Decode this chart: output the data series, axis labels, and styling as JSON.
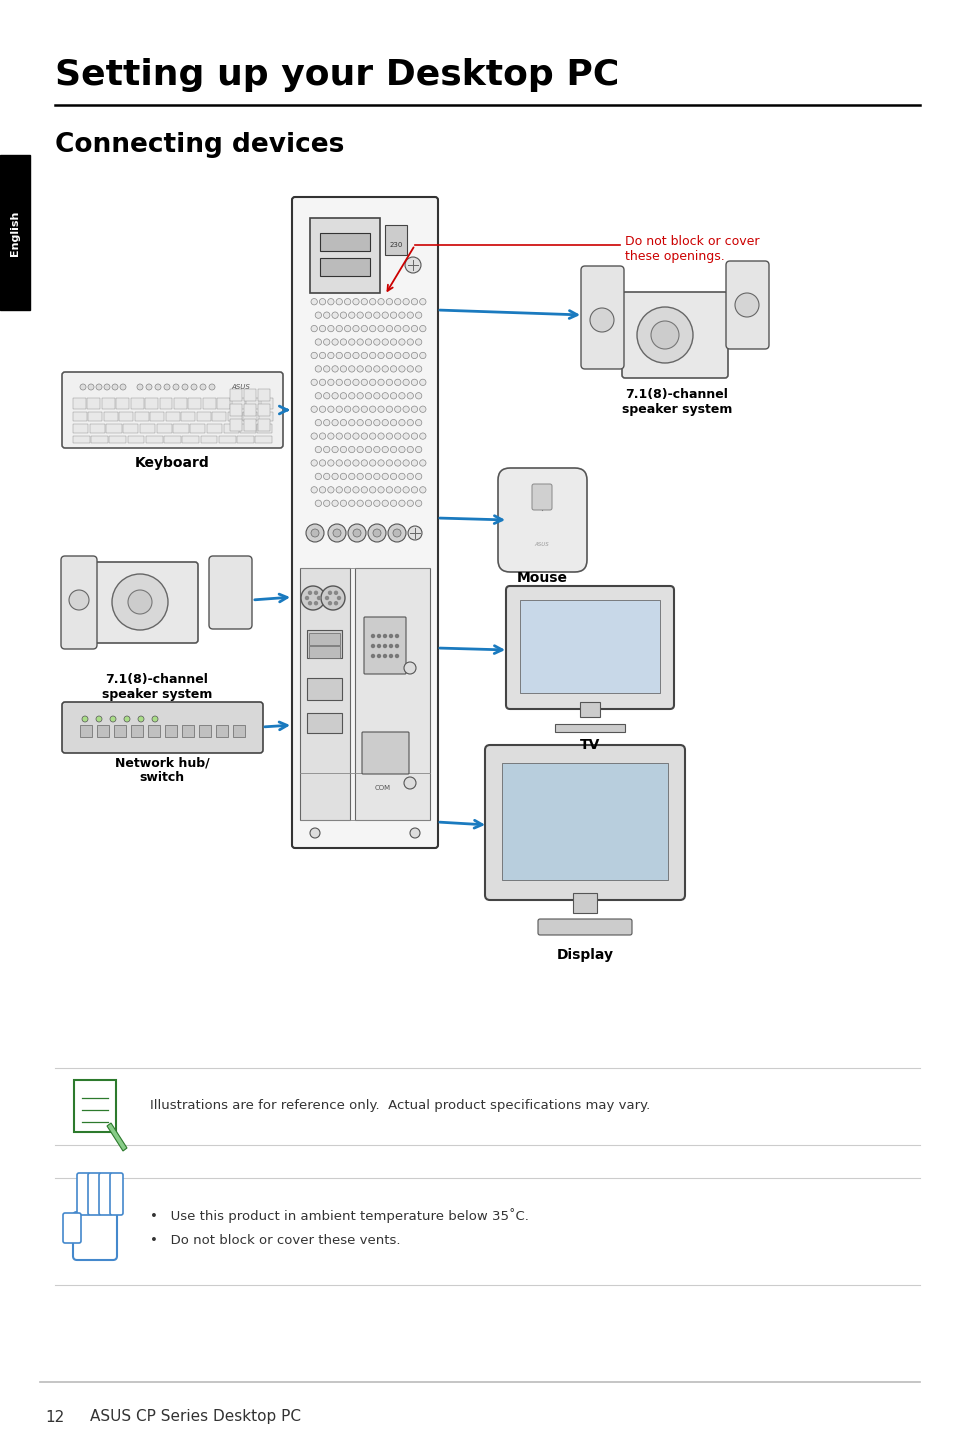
{
  "title": "Setting up your Desktop PC",
  "subtitle": "Connecting devices",
  "sidebar_text": "English",
  "page_number": "12",
  "footer_text": "ASUS CP Series Desktop PC",
  "note1_text": "Illustrations are for reference only.  Actual product specifications may vary.",
  "note2_text1": "Use this product in ambient temperature below 35˚C.",
  "note2_text2": "Do not block or cover these vents.",
  "red_label": "Do not block or cover\nthese openings.",
  "label_keyboard": "Keyboard",
  "label_speaker_top": "7.1(8)-channel\nspeaker system",
  "label_speaker_bottom": "7.1(8)-channel\nspeaker system",
  "label_mouse": "Mouse",
  "label_tv": "TV",
  "label_network": "Network hub/\nswitch",
  "label_display": "Display",
  "bg_color": "#ffffff",
  "sidebar_bg": "#000000",
  "sidebar_text_color": "#ffffff",
  "title_color": "#000000",
  "subtitle_color": "#000000",
  "red_color": "#cc0000",
  "arrow_color": "#1a7abf",
  "line_color": "#cccccc",
  "footer_line_color": "#bbbbbb",
  "tower_face": "#f0f0f0",
  "tower_edge": "#333333"
}
